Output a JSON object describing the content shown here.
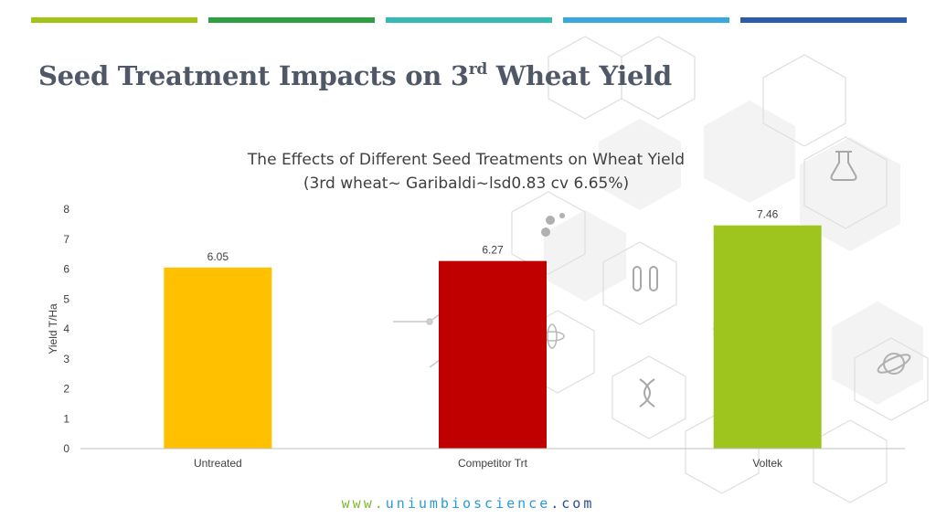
{
  "slide": {
    "title_main": "Seed Treatment Impacts on 3",
    "title_sup": "rd",
    "title_end": " Wheat Yield"
  },
  "stripes": [
    {
      "color": "#a2c515"
    },
    {
      "color": "#2ea043"
    },
    {
      "color": "#35b9b5"
    },
    {
      "color": "#3aa8e0"
    },
    {
      "color": "#2c5ba8"
    }
  ],
  "footer": {
    "www": "www.",
    "domain": "uniumbioscience",
    "tld": ".com"
  },
  "chart_data": {
    "type": "bar",
    "title": "The Effects of Different Seed Treatments on Wheat Yield",
    "subtitle": "(3rd wheat~ Garibaldi~lsd0.83 cv 6.65%)",
    "xlabel": "",
    "ylabel": "Yield T/Ha",
    "categories": [
      "Untreated",
      "Competitor Trt",
      "Voltek"
    ],
    "values": [
      6.05,
      6.27,
      7.46
    ],
    "value_labels": [
      "6.05",
      "6.27",
      "7.46"
    ],
    "colors": [
      "#ffc000",
      "#c00000",
      "#9ec41e"
    ],
    "ylim": [
      0,
      8
    ],
    "yticks": [
      0,
      1,
      2,
      3,
      4,
      5,
      6,
      7,
      8
    ],
    "grid": false,
    "legend": "none"
  }
}
